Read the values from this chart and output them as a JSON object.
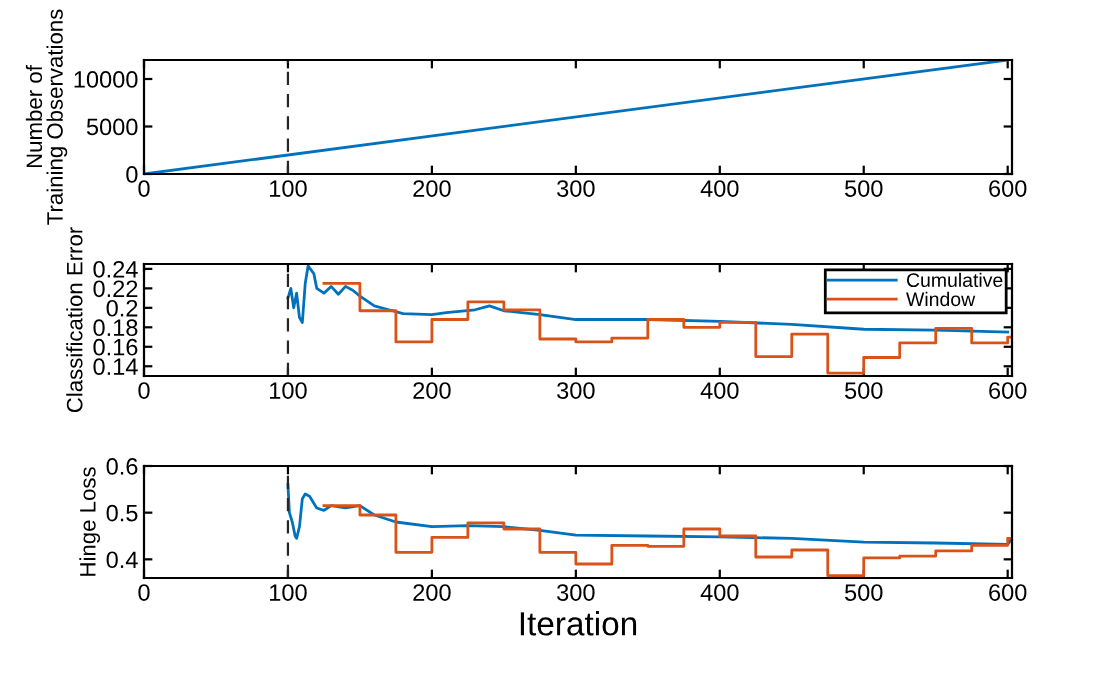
{
  "chart_data": [
    {
      "type": "line",
      "ylabel": "Number of\nTraining Observations",
      "x": [
        0,
        600
      ],
      "xlim": [
        0,
        603
      ],
      "ylim": [
        0,
        12000
      ],
      "xticks": [
        0,
        100,
        200,
        300,
        400,
        500,
        600
      ],
      "yticks": [
        0,
        5000,
        10000
      ],
      "grid": false,
      "legend": false,
      "ref_lines": [
        {
          "axis": "x",
          "value": 100,
          "line_style": "dashed",
          "color": "#262626"
        }
      ],
      "series": [
        {
          "color": "#0072bd",
          "values": [
            0,
            12000
          ]
        }
      ]
    },
    {
      "type": "line",
      "ylabel": "Classification Error",
      "xlim": [
        0,
        603
      ],
      "ylim": [
        0.13,
        0.245
      ],
      "xticks": [
        0,
        100,
        200,
        300,
        400,
        500,
        600
      ],
      "yticks": [
        0.14,
        0.16,
        0.18,
        {
          "value": 0.2,
          "label": "0.2"
        },
        0.22,
        0.24
      ],
      "grid": false,
      "legend": "top right",
      "ref_lines": [
        {
          "axis": "x",
          "value": 100,
          "line_style": "dashed",
          "color": "#262626"
        }
      ],
      "series": [
        {
          "name": "Cumulative",
          "color": "#0072bd",
          "x": [
            100,
            102,
            104,
            106,
            108,
            110,
            112,
            114,
            118,
            120,
            125,
            130,
            135,
            140,
            145,
            150,
            160,
            170,
            180,
            200,
            210,
            230,
            240,
            250,
            275,
            300,
            350,
            400,
            450,
            500,
            550,
            600
          ],
          "values": [
            0.21,
            0.22,
            0.2,
            0.215,
            0.19,
            0.185,
            0.225,
            0.243,
            0.235,
            0.22,
            0.215,
            0.222,
            0.214,
            0.222,
            0.218,
            0.212,
            0.202,
            0.198,
            0.194,
            0.193,
            0.195,
            0.198,
            0.202,
            0.197,
            0.193,
            0.188,
            0.188,
            0.186,
            0.183,
            0.178,
            0.177,
            0.175
          ]
        },
        {
          "name": "Window",
          "type": "step",
          "color": "#d95319",
          "x": [
            125,
            150,
            175,
            200,
            225,
            250,
            275,
            300,
            325,
            350,
            375,
            400,
            425,
            450,
            475,
            500,
            525,
            550,
            575,
            600,
            603
          ],
          "values": [
            0.225,
            0.197,
            0.165,
            0.188,
            0.206,
            0.198,
            0.168,
            0.165,
            0.169,
            0.188,
            0.18,
            0.185,
            0.15,
            0.173,
            0.133,
            0.149,
            0.164,
            0.179,
            0.164,
            0.17,
            0.17
          ]
        }
      ]
    },
    {
      "type": "line",
      "ylabel": "Hinge Loss",
      "xlabel": "Iteration",
      "xlim": [
        0,
        603
      ],
      "ylim": [
        0.36,
        0.6
      ],
      "xticks": [
        0,
        100,
        200,
        300,
        400,
        500,
        600
      ],
      "yticks": [
        0.4,
        0.5,
        0.6
      ],
      "grid": false,
      "legend": false,
      "ref_lines": [
        {
          "axis": "x",
          "value": 100,
          "line_style": "dashed",
          "color": "#262626"
        }
      ],
      "series": [
        {
          "color": "#0072bd",
          "x": [
            100,
            101,
            103,
            105,
            106,
            108,
            110,
            112,
            115,
            120,
            125,
            130,
            140,
            150,
            160,
            175,
            200,
            225,
            250,
            275,
            300,
            350,
            400,
            450,
            500,
            550,
            600,
            603
          ],
          "values": [
            0.56,
            0.5,
            0.48,
            0.45,
            0.445,
            0.47,
            0.53,
            0.54,
            0.535,
            0.51,
            0.505,
            0.515,
            0.51,
            0.515,
            0.495,
            0.48,
            0.47,
            0.472,
            0.47,
            0.462,
            0.452,
            0.45,
            0.448,
            0.445,
            0.437,
            0.435,
            0.432,
            0.445
          ]
        },
        {
          "type": "step",
          "color": "#d95319",
          "x": [
            125,
            150,
            175,
            200,
            225,
            250,
            275,
            300,
            325,
            350,
            375,
            400,
            425,
            450,
            475,
            500,
            525,
            550,
            575,
            600,
            603
          ],
          "values": [
            0.515,
            0.495,
            0.415,
            0.447,
            0.478,
            0.465,
            0.415,
            0.39,
            0.43,
            0.428,
            0.465,
            0.45,
            0.405,
            0.42,
            0.365,
            0.403,
            0.407,
            0.418,
            0.43,
            0.445,
            0.445
          ]
        }
      ]
    }
  ]
}
